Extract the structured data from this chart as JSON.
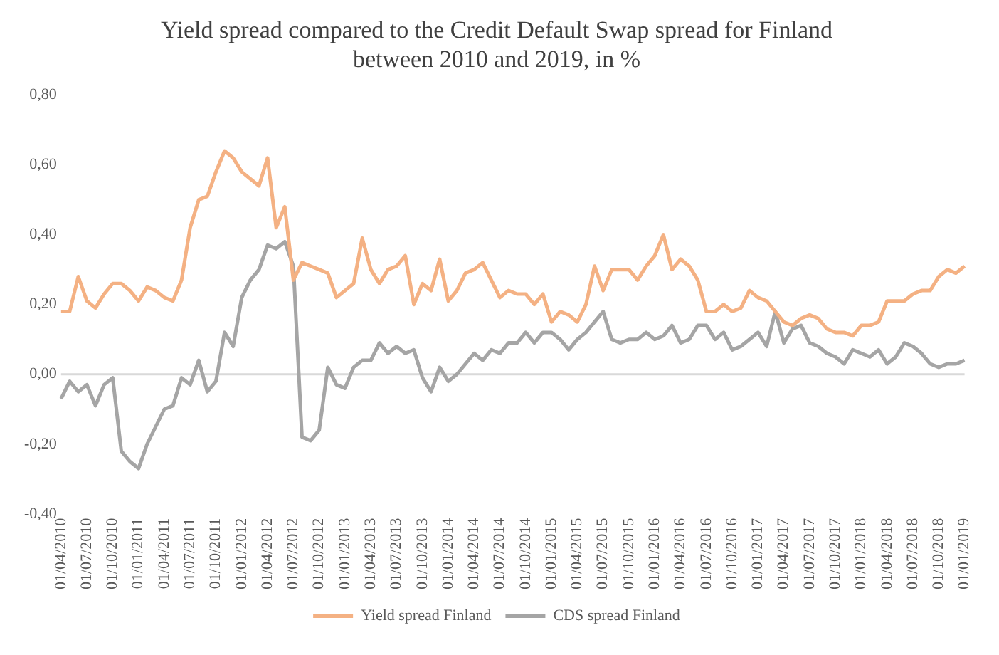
{
  "chart_data": {
    "type": "line",
    "title": "Yield spread compared to the Credit Default Swap spread for Finland\nbetween 2010 and 2019, in %",
    "categories": [
      "01/04/2010",
      null,
      null,
      "01/07/2010",
      null,
      null,
      "01/10/2010",
      null,
      null,
      "01/01/2011",
      null,
      null,
      "01/04/2011",
      null,
      null,
      "01/07/2011",
      null,
      null,
      "01/10/2011",
      null,
      null,
      "01/01/2012",
      null,
      null,
      "01/04/2012",
      null,
      null,
      "01/07/2012",
      null,
      null,
      "01/10/2012",
      null,
      null,
      "01/01/2013",
      null,
      null,
      "01/04/2013",
      null,
      null,
      "01/07/2013",
      null,
      null,
      "01/10/2013",
      null,
      null,
      "01/01/2014",
      null,
      null,
      "01/04/2014",
      null,
      null,
      "01/07/2014",
      null,
      null,
      "01/10/2014",
      null,
      null,
      "01/01/2015",
      null,
      null,
      "01/04/2015",
      null,
      null,
      "01/07/2015",
      null,
      null,
      "01/10/2015",
      null,
      null,
      "01/01/2016",
      null,
      null,
      "01/04/2016",
      null,
      null,
      "01/07/2016",
      null,
      null,
      "01/10/2016",
      null,
      null,
      "01/01/2017",
      null,
      null,
      "01/04/2017",
      null,
      null,
      "01/07/2017",
      null,
      null,
      "01/10/2017",
      null,
      null,
      "01/01/2018",
      null,
      null,
      "01/04/2018",
      null,
      null,
      "01/07/2018",
      null,
      null,
      "01/10/2018",
      null,
      null,
      "01/01/2019"
    ],
    "series": [
      {
        "name": "Yield spread Finland",
        "color": "#f4b183",
        "values": [
          0.18,
          0.18,
          0.28,
          0.21,
          0.19,
          0.23,
          0.26,
          0.26,
          0.24,
          0.21,
          0.25,
          0.24,
          0.22,
          0.21,
          0.27,
          0.42,
          0.5,
          0.51,
          0.58,
          0.64,
          0.62,
          0.58,
          0.56,
          0.54,
          0.62,
          0.42,
          0.48,
          0.27,
          0.32,
          0.31,
          0.3,
          0.29,
          0.22,
          0.24,
          0.26,
          0.39,
          0.3,
          0.26,
          0.3,
          0.31,
          0.34,
          0.2,
          0.26,
          0.24,
          0.33,
          0.21,
          0.24,
          0.29,
          0.3,
          0.32,
          0.27,
          0.22,
          0.24,
          0.23,
          0.23,
          0.2,
          0.23,
          0.15,
          0.18,
          0.17,
          0.15,
          0.2,
          0.31,
          0.24,
          0.3,
          0.3,
          0.3,
          0.27,
          0.31,
          0.34,
          0.4,
          0.3,
          0.33,
          0.31,
          0.27,
          0.18,
          0.18,
          0.2,
          0.18,
          0.19,
          0.24,
          0.22,
          0.21,
          0.18,
          0.15,
          0.14,
          0.16,
          0.17,
          0.16,
          0.13,
          0.12,
          0.12,
          0.11,
          0.14,
          0.14,
          0.15,
          0.21,
          0.21,
          0.21,
          0.23,
          0.24,
          0.24,
          0.28,
          0.3,
          0.29,
          0.31
        ]
      },
      {
        "name": "CDS spread Finland",
        "color": "#a5a5a5",
        "values": [
          -0.07,
          -0.02,
          -0.05,
          -0.03,
          -0.09,
          -0.03,
          -0.01,
          -0.22,
          -0.25,
          -0.27,
          -0.2,
          -0.15,
          -0.1,
          -0.09,
          -0.01,
          -0.03,
          0.04,
          -0.05,
          -0.02,
          0.12,
          0.08,
          0.22,
          0.27,
          0.3,
          0.37,
          0.36,
          0.38,
          0.31,
          -0.18,
          -0.19,
          -0.16,
          0.02,
          -0.03,
          -0.04,
          0.02,
          0.04,
          0.04,
          0.09,
          0.06,
          0.08,
          0.06,
          0.07,
          -0.01,
          -0.05,
          0.02,
          -0.02,
          0.0,
          0.03,
          0.06,
          0.04,
          0.07,
          0.06,
          0.09,
          0.09,
          0.12,
          0.09,
          0.12,
          0.12,
          0.1,
          0.07,
          0.1,
          0.12,
          0.15,
          0.18,
          0.1,
          0.09,
          0.1,
          0.1,
          0.12,
          0.1,
          0.11,
          0.14,
          0.09,
          0.1,
          0.14,
          0.14,
          0.1,
          0.12,
          0.07,
          0.08,
          0.1,
          0.12,
          0.08,
          0.18,
          0.09,
          0.13,
          0.14,
          0.09,
          0.08,
          0.06,
          0.05,
          0.03,
          0.07,
          0.06,
          0.05,
          0.07,
          0.03,
          0.05,
          0.09,
          0.08,
          0.06,
          0.03,
          0.02,
          0.03,
          0.03,
          0.04
        ]
      }
    ],
    "ylim": [
      -0.4,
      0.8
    ],
    "yticks": [
      {
        "value": -0.4,
        "label": "-0,40"
      },
      {
        "value": -0.2,
        "label": "-0,20"
      },
      {
        "value": 0,
        "label": "0,00"
      },
      {
        "value": 0.2,
        "label": "0,20"
      },
      {
        "value": 0.4,
        "label": "0,40"
      },
      {
        "value": 0.6,
        "label": "0,60"
      },
      {
        "value": 0.8,
        "label": "0,80"
      }
    ],
    "grid": false,
    "ref_lines": [
      {
        "axis": "y",
        "value": 0,
        "color": "#d9d9d9"
      }
    ],
    "legend": "bottom",
    "marker": "none",
    "line_style": "solid"
  }
}
